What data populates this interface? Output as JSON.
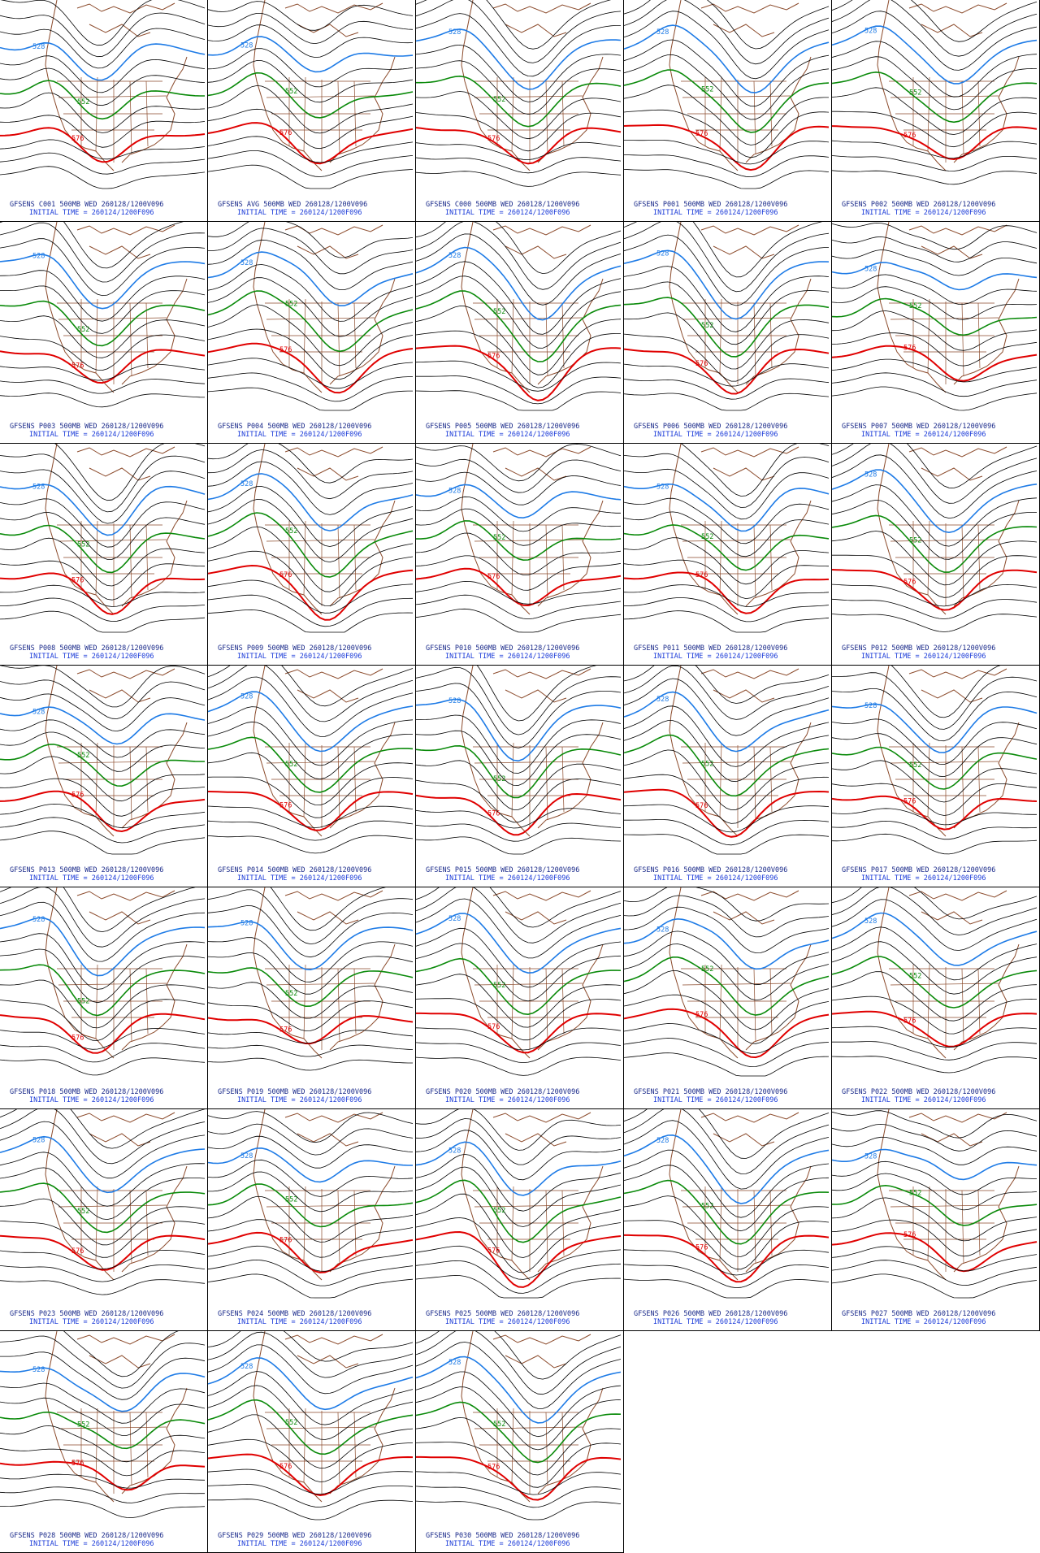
{
  "panels": [
    {
      "title": "GFSENS C001 500MB WED 260128/1200V096",
      "initial": "INITIAL TIME = 260124/1200F096",
      "contour_labels": [
        "528",
        "552",
        "576"
      ]
    },
    {
      "title": "GFSENS AVG 500MB WED 260128/1200V096",
      "initial": "INITIAL TIME = 260124/1200F096",
      "contour_labels": [
        "528",
        "552",
        "576"
      ]
    },
    {
      "title": "GFSENS C000 500MB WED 260128/1200V096",
      "initial": "INITIAL TIME = 260124/1200F096",
      "contour_labels": [
        "528",
        "552",
        "576"
      ]
    },
    {
      "title": "GFSENS P001 500MB WED 260128/1200V096",
      "initial": "INITIAL TIME = 260124/1200F096",
      "contour_labels": [
        "528",
        "552",
        "576"
      ]
    },
    {
      "title": "GFSENS P002 500MB WED 260128/1200V096",
      "initial": "INITIAL TIME = 260124/1200F096",
      "contour_labels": [
        "528",
        "552",
        "576"
      ]
    },
    {
      "title": "GFSENS P003 500MB WED 260128/1200V096",
      "initial": "INITIAL TIME = 260124/1200F096",
      "contour_labels": [
        "528",
        "552",
        "576"
      ]
    },
    {
      "title": "GFSENS P004 500MB WED 260128/1200V096",
      "initial": "INITIAL TIME = 260124/1200F096",
      "contour_labels": [
        "528",
        "552",
        "576"
      ]
    },
    {
      "title": "GFSENS P005 500MB WED 260128/1200V096",
      "initial": "INITIAL TIME = 260124/1200F096",
      "contour_labels": [
        "528",
        "552",
        "576"
      ]
    },
    {
      "title": "GFSENS P006 500MB WED 260128/1200V096",
      "initial": "INITIAL TIME = 260124/1200F096",
      "contour_labels": [
        "528",
        "552",
        "576"
      ]
    },
    {
      "title": "GFSENS P007 500MB WED 260128/1200V096",
      "initial": "INITIAL TIME = 260124/1200F096",
      "contour_labels": [
        "528",
        "552",
        "576"
      ]
    },
    {
      "title": "GFSENS P008 500MB WED 260128/1200V096",
      "initial": "INITIAL TIME = 260124/1200F096",
      "contour_labels": [
        "528",
        "552",
        "576"
      ]
    },
    {
      "title": "GFSENS P009 500MB WED 260128/1200V096",
      "initial": "INITIAL TIME = 260124/1200F096",
      "contour_labels": [
        "528",
        "552",
        "576"
      ]
    },
    {
      "title": "GFSENS P010 500MB WED 260128/1200V096",
      "initial": "INITIAL TIME = 260124/1200F096",
      "contour_labels": [
        "528",
        "552",
        "576"
      ]
    },
    {
      "title": "GFSENS P011 500MB WED 260128/1200V096",
      "initial": "INITIAL TIME = 260124/1200F096",
      "contour_labels": [
        "528",
        "552",
        "576"
      ]
    },
    {
      "title": "GFSENS P012 500MB WED 260128/1200V096",
      "initial": "INITIAL TIME = 260124/1200F096",
      "contour_labels": [
        "528",
        "552",
        "576"
      ]
    },
    {
      "title": "GFSENS P013 500MB WED 260128/1200V096",
      "initial": "INITIAL TIME = 260124/1200F096",
      "contour_labels": [
        "528",
        "552",
        "576"
      ]
    },
    {
      "title": "GFSENS P014 500MB WED 260128/1200V096",
      "initial": "INITIAL TIME = 260124/1200F096",
      "contour_labels": [
        "528",
        "552",
        "576"
      ]
    },
    {
      "title": "GFSENS P015 500MB WED 260128/1200V096",
      "initial": "INITIAL TIME = 260124/1200F096",
      "contour_labels": [
        "528",
        "552",
        "576"
      ]
    },
    {
      "title": "GFSENS P016 500MB WED 260128/1200V096",
      "initial": "INITIAL TIME = 260124/1200F096",
      "contour_labels": [
        "528",
        "552",
        "576"
      ]
    },
    {
      "title": "GFSENS P017 500MB WED 260128/1200V096",
      "initial": "INITIAL TIME = 260124/1200F096",
      "contour_labels": [
        "528",
        "552",
        "576"
      ]
    },
    {
      "title": "GFSENS P018 500MB WED 260128/1200V096",
      "initial": "INITIAL TIME = 260124/1200F096",
      "contour_labels": [
        "528",
        "552",
        "576"
      ]
    },
    {
      "title": "GFSENS P019 500MB WED 260128/1200V096",
      "initial": "INITIAL TIME = 260124/1200F096",
      "contour_labels": [
        "528",
        "552",
        "576"
      ]
    },
    {
      "title": "GFSENS P020 500MB WED 260128/1200V096",
      "initial": "INITIAL TIME = 260124/1200F096",
      "contour_labels": [
        "528",
        "552",
        "576"
      ]
    },
    {
      "title": "GFSENS P021 500MB WED 260128/1200V096",
      "initial": "INITIAL TIME = 260124/1200F096",
      "contour_labels": [
        "528",
        "552",
        "576"
      ]
    },
    {
      "title": "GFSENS P022 500MB WED 260128/1200V096",
      "initial": "INITIAL TIME = 260124/1200F096",
      "contour_labels": [
        "528",
        "552",
        "576"
      ]
    },
    {
      "title": "GFSENS P023 500MB WED 260128/1200V096",
      "initial": "INITIAL TIME = 260124/1200F096",
      "contour_labels": [
        "528",
        "552",
        "576"
      ]
    },
    {
      "title": "GFSENS P024 500MB WED 260128/1200V096",
      "initial": "INITIAL TIME = 260124/1200F096",
      "contour_labels": [
        "528",
        "552",
        "576"
      ]
    },
    {
      "title": "GFSENS P025 500MB WED 260128/1200V096",
      "initial": "INITIAL TIME = 260124/1200F096",
      "contour_labels": [
        "528",
        "552",
        "576"
      ]
    },
    {
      "title": "GFSENS P026 500MB WED 260128/1200V096",
      "initial": "INITIAL TIME = 260124/1200F096",
      "contour_labels": [
        "528",
        "552",
        "576"
      ]
    },
    {
      "title": "GFSENS P027 500MB WED 260128/1200V096",
      "initial": "INITIAL TIME = 260124/1200F096",
      "contour_labels": [
        "528",
        "552",
        "576"
      ]
    },
    {
      "title": "GFSENS P028 500MB WED 260128/1200V096",
      "initial": "INITIAL TIME = 260124/1200F096",
      "contour_labels": [
        "528",
        "552",
        "576"
      ]
    },
    {
      "title": "GFSENS P029 500MB WED 260128/1200V096",
      "initial": "INITIAL TIME = 260124/1200F096",
      "contour_labels": [
        "528",
        "552",
        "576"
      ]
    },
    {
      "title": "GFSENS P030 500MB WED 260128/1200V096",
      "initial": "INITIAL TIME = 260124/1200F096",
      "contour_labels": [
        "528",
        "552",
        "576"
      ]
    }
  ]
}
